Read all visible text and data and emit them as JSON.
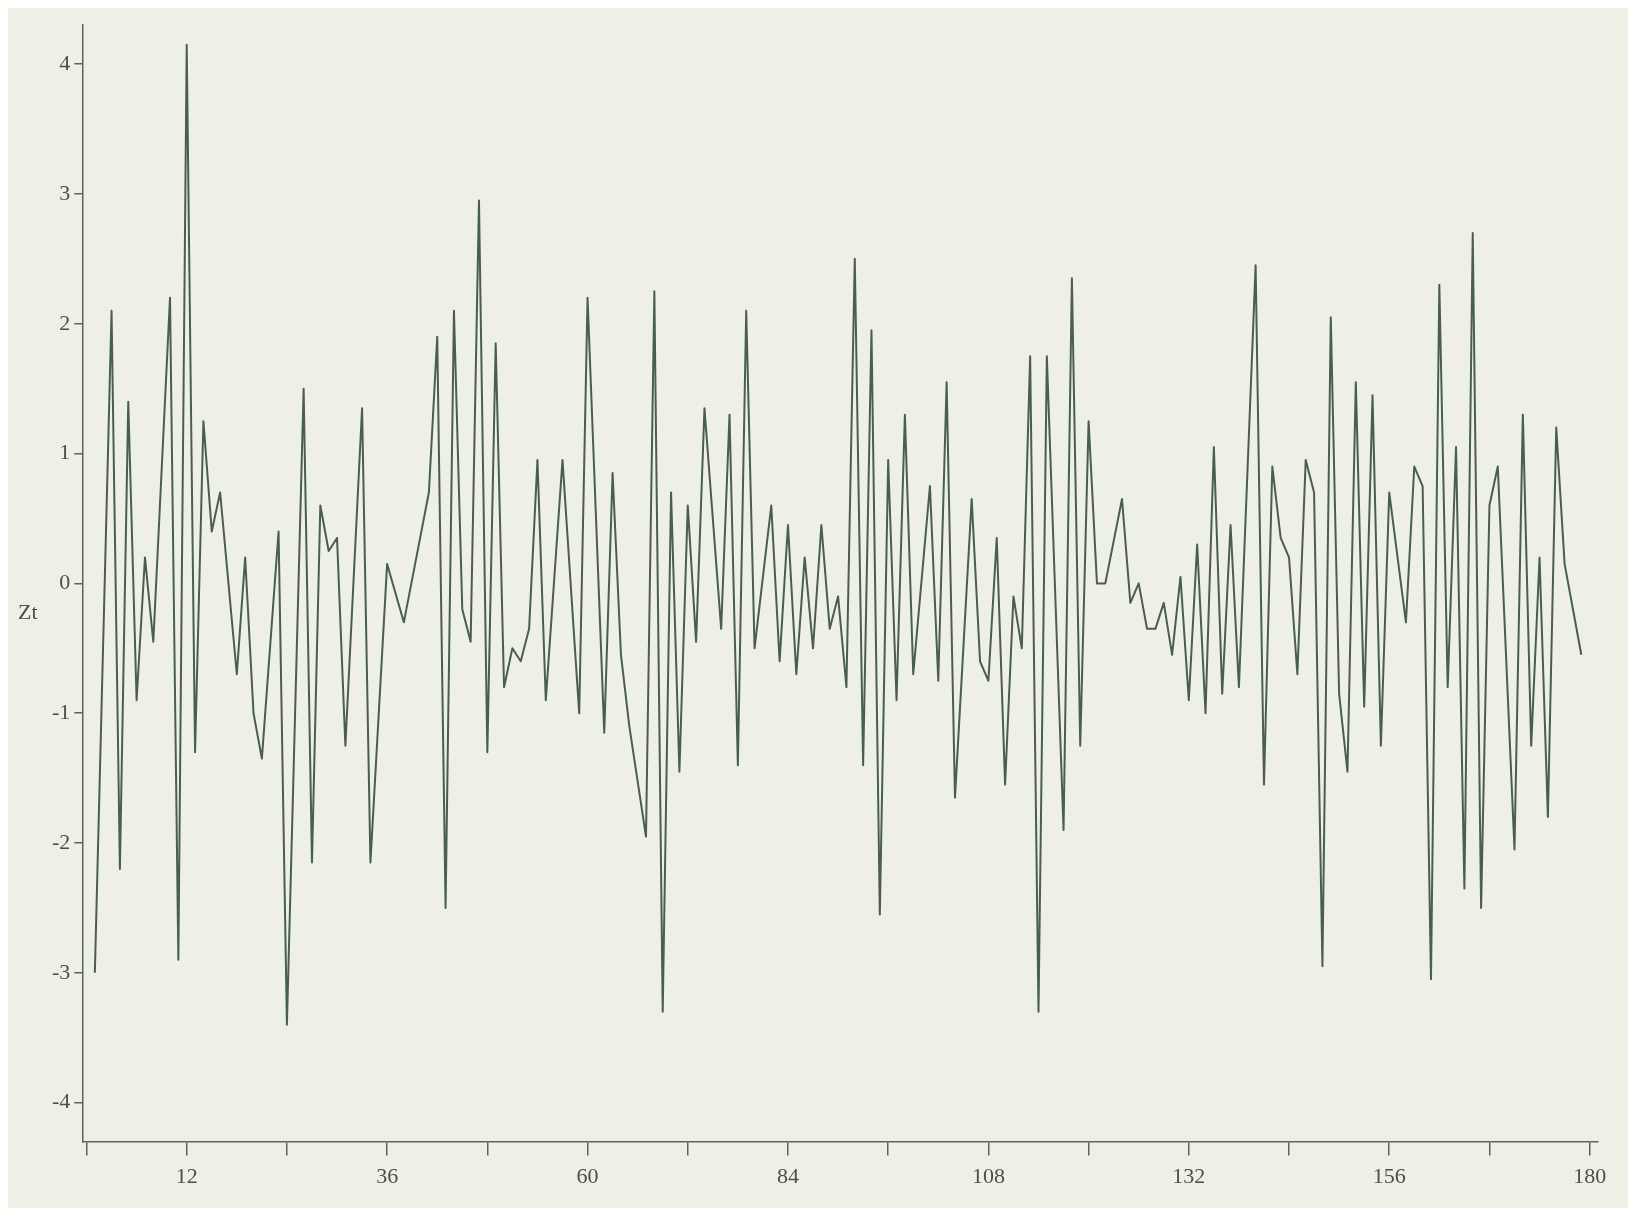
{
  "chart_data": {
    "type": "line",
    "ylabel": "Zt",
    "marker": "none",
    "line_style": "solid",
    "grid": false,
    "legend": false,
    "xlim": [
      -0.5,
      181
    ],
    "ylim": [
      -4.3,
      4.3
    ],
    "xticks": [
      {
        "value": 0,
        "label": null
      },
      12,
      {
        "value": 24,
        "label": null
      },
      36,
      {
        "value": 48,
        "label": null
      },
      60,
      {
        "value": 72,
        "label": null
      },
      84,
      {
        "value": 96,
        "label": null
      },
      108,
      {
        "value": 120,
        "label": null
      },
      132,
      {
        "value": 144,
        "label": null
      },
      156,
      {
        "value": 168,
        "label": null
      },
      180
    ],
    "yticks": [
      -4,
      -3,
      -2,
      -1,
      0,
      1,
      2,
      3,
      4
    ],
    "series": [
      {
        "color": "#4a5e4e",
        "x": [
          1,
          3,
          4,
          5,
          6,
          7,
          8,
          10,
          11,
          12,
          13,
          14,
          15,
          16,
          18,
          19,
          20,
          21,
          23,
          24,
          26,
          27,
          28,
          29,
          30,
          31,
          33,
          34,
          36,
          38,
          41,
          42,
          43,
          44,
          45,
          46,
          47,
          48,
          49,
          50,
          51,
          52,
          53,
          54,
          55,
          57,
          59,
          60,
          62,
          63,
          64,
          65,
          67,
          68,
          69,
          70,
          71,
          72,
          73,
          74,
          76,
          77,
          78,
          79,
          80,
          82,
          83,
          84,
          85,
          86,
          87,
          88,
          89,
          90,
          91,
          92,
          93,
          94,
          95,
          96,
          97,
          98,
          99,
          101,
          102,
          103,
          104,
          106,
          107,
          108,
          109,
          110,
          111,
          112,
          113,
          114,
          115,
          117,
          118,
          119,
          120,
          121,
          122,
          124,
          125,
          126,
          127,
          128,
          129,
          130,
          131,
          132,
          133,
          134,
          135,
          136,
          137,
          138,
          140,
          141,
          142,
          143,
          144,
          145,
          146,
          147,
          148,
          149,
          150,
          151,
          152,
          153,
          154,
          155,
          156,
          158,
          159,
          160,
          161,
          162,
          163,
          164,
          165,
          166,
          167,
          168,
          169,
          171,
          172,
          173,
          174,
          175,
          176,
          177,
          179
        ],
        "values": [
          -3.0,
          2.1,
          -2.2,
          1.4,
          -0.9,
          0.2,
          -0.45,
          2.2,
          -2.9,
          4.15,
          -1.3,
          1.25,
          0.4,
          0.7,
          -0.7,
          0.2,
          -1.0,
          -1.35,
          0.4,
          -3.4,
          1.5,
          -2.15,
          0.6,
          0.25,
          0.35,
          -1.25,
          1.35,
          -2.15,
          0.15,
          -0.3,
          0.7,
          1.9,
          -2.5,
          2.1,
          -0.2,
          -0.45,
          2.95,
          -1.3,
          1.85,
          -0.8,
          -0.5,
          -0.6,
          -0.35,
          0.95,
          -0.9,
          0.95,
          -1.0,
          2.2,
          -1.15,
          0.85,
          -0.55,
          -1.1,
          -1.95,
          2.25,
          -3.3,
          0.7,
          -1.45,
          0.6,
          -0.45,
          1.35,
          -0.35,
          1.3,
          -1.4,
          2.1,
          -0.5,
          0.6,
          -0.6,
          0.45,
          -0.7,
          0.2,
          -0.5,
          0.45,
          -0.35,
          -0.1,
          -0.8,
          2.5,
          -1.4,
          1.95,
          -2.55,
          0.95,
          -0.9,
          1.3,
          -0.7,
          0.75,
          -0.75,
          1.55,
          -1.65,
          0.65,
          -0.6,
          -0.75,
          0.35,
          -1.55,
          -0.1,
          -0.5,
          1.75,
          -3.3,
          1.75,
          -1.9,
          2.35,
          -1.25,
          1.25,
          0.0,
          0.0,
          0.65,
          -0.15,
          0.0,
          -0.35,
          -0.35,
          -0.15,
          -0.55,
          0.05,
          -0.9,
          0.3,
          -1.0,
          1.05,
          -0.85,
          0.45,
          -0.8,
          2.45,
          -1.55,
          0.9,
          0.35,
          0.2,
          -0.7,
          0.95,
          0.7,
          -2.95,
          2.05,
          -0.85,
          -1.45,
          1.55,
          -0.95,
          1.45,
          -1.25,
          0.7,
          -0.3,
          0.9,
          0.75,
          -3.05,
          2.3,
          -0.8,
          1.05,
          -2.35,
          2.7,
          -2.5,
          0.6,
          0.9,
          -2.05,
          1.3,
          -1.25,
          0.2,
          -1.8,
          1.2,
          0.15,
          -0.55
        ]
      }
    ]
  }
}
